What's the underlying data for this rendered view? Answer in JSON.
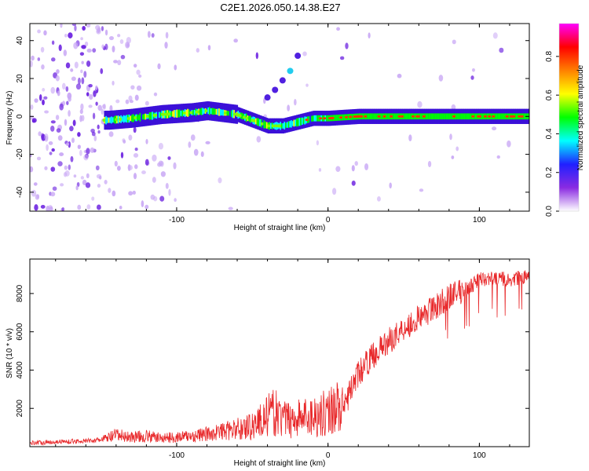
{
  "title": "C2E1.2026.050.14.38.E27",
  "chart_data": [
    {
      "type": "heatmap",
      "xlabel": "Height of straight line (km)",
      "ylabel": "Frequency (Hz)",
      "xlim": [
        -197,
        133
      ],
      "ylim": [
        -50,
        49
      ],
      "xticks": [
        -100,
        0,
        100
      ],
      "yticks": [
        -40,
        -20,
        0,
        20,
        40
      ],
      "colorbar": {
        "label": "Normalized spectral amplitude",
        "range": [
          0,
          0.97
        ],
        "ticks": [
          "0.0",
          "0.2",
          "0.4",
          "0.6",
          "0.8"
        ],
        "colors": [
          "#ffffff",
          "#8a2be2",
          "#2020ff",
          "#00ffff",
          "#00ff00",
          "#ffff00",
          "#ff8000",
          "#ff0000",
          "#ff00ff"
        ]
      },
      "ridge": {
        "description_points_x": [
          -145,
          -130,
          -110,
          -90,
          -80,
          -70,
          -60,
          -50,
          -40,
          -30,
          -20,
          -10,
          0,
          20,
          50,
          80,
          110,
          133
        ],
        "description_points_y": [
          -2,
          -1,
          1,
          2,
          3,
          2,
          1,
          -2,
          -5,
          -5,
          -3,
          -1,
          -1,
          0,
          0,
          0,
          0,
          0
        ]
      },
      "spur": {
        "x": [
          -40,
          -35,
          -30,
          -25,
          -20
        ],
        "y": [
          10,
          14,
          19,
          24,
          32
        ]
      }
    },
    {
      "type": "line",
      "xlabel": "Height of straight line (km)",
      "ylabel": "SNR (10 * v/v)",
      "xlim": [
        -197,
        133
      ],
      "ylim": [
        0,
        9800
      ],
      "xticks": [
        -100,
        0,
        100
      ],
      "yticks": [
        2000,
        4000,
        6000,
        8000
      ],
      "color": "#e8282a",
      "series": [
        {
          "name": "SNR",
          "x": [
            -197,
            -180,
            -160,
            -150,
            -140,
            -130,
            -120,
            -110,
            -100,
            -90,
            -80,
            -70,
            -60,
            -50,
            -40,
            -35,
            -30,
            -20,
            -10,
            0,
            5,
            10,
            15,
            20,
            30,
            40,
            50,
            60,
            70,
            80,
            90,
            100,
            110,
            120,
            133
          ],
          "y": [
            200,
            250,
            300,
            350,
            600,
            500,
            550,
            450,
            500,
            550,
            650,
            800,
            900,
            1100,
            1600,
            1800,
            1400,
            1500,
            1600,
            1800,
            2200,
            1800,
            3000,
            3800,
            4800,
            5500,
            6200,
            6700,
            7300,
            7800,
            8200,
            8700,
            8800,
            8700,
            8900
          ]
        }
      ]
    }
  ]
}
